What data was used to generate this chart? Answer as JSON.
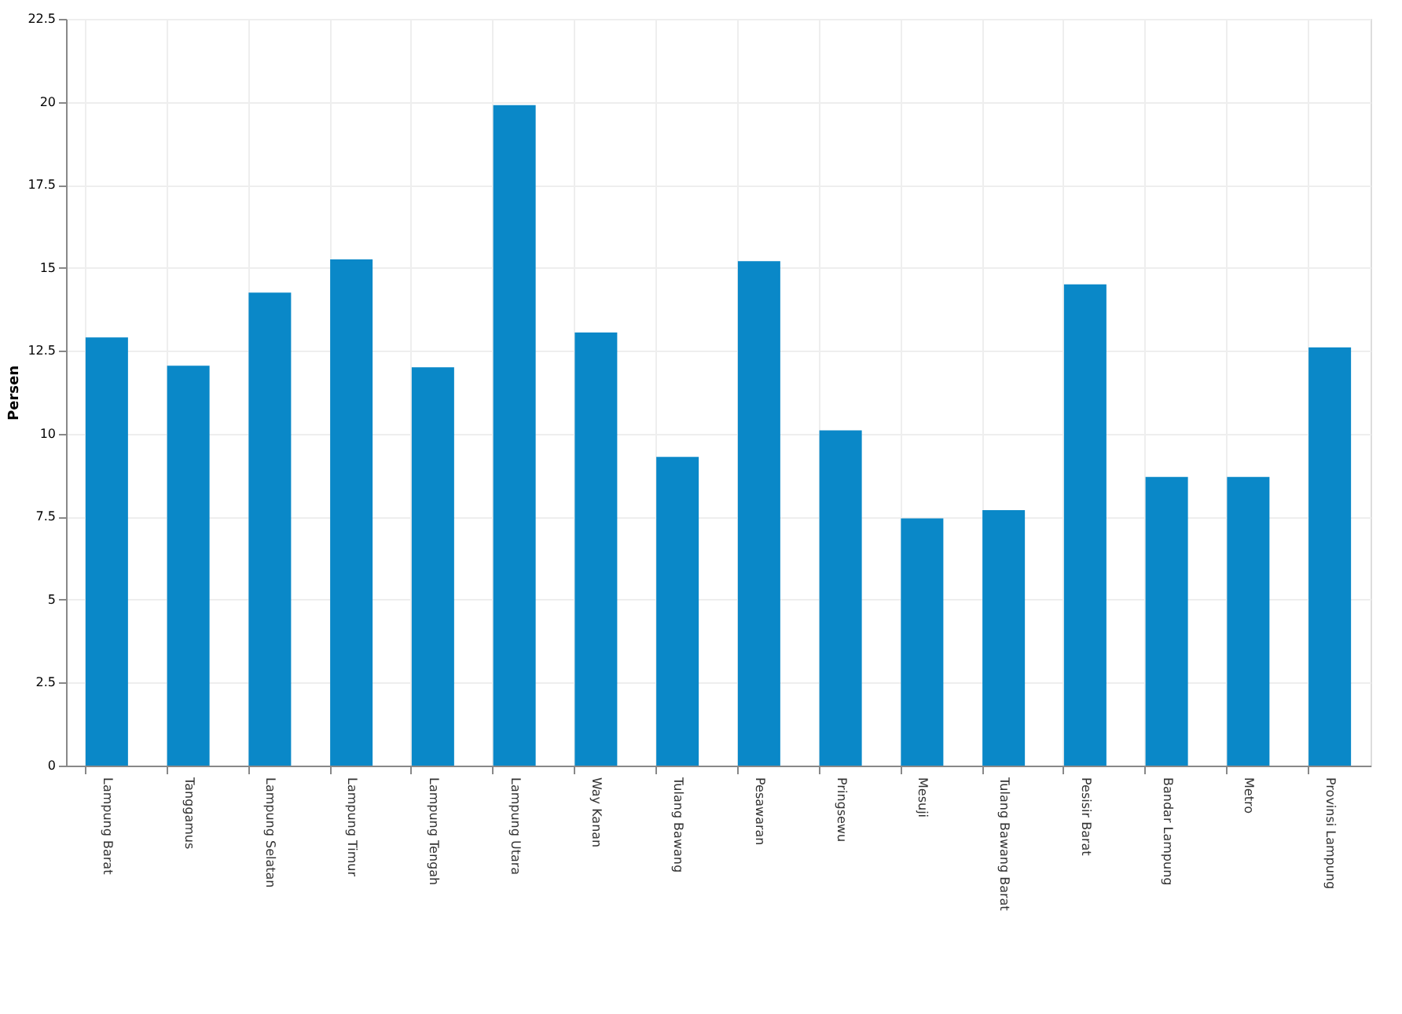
{
  "chart_data": {
    "type": "bar",
    "ylabel": "Persen",
    "categories": [
      "Lampung Barat",
      "Tanggamus",
      "Lampung Selatan",
      "Lampung Timur",
      "Lampung Tengah",
      "Lampung Utara",
      "Way Kanan",
      "Tulang Bawang",
      "Pesawaran",
      "Pringsewu",
      "Mesuji",
      "Tulang Bawang Barat",
      "Pesisir Barat",
      "Bandar Lampung",
      "Metro",
      "Provinsi Lampung"
    ],
    "values": [
      12.9,
      12.05,
      14.25,
      15.25,
      12.0,
      19.9,
      13.05,
      9.3,
      15.2,
      10.1,
      7.45,
      7.7,
      14.5,
      8.7,
      8.7,
      12.6
    ],
    "color": "#0a88c8",
    "ylim": [
      0,
      22.5
    ],
    "yticks": [
      0,
      2.5,
      5,
      7.5,
      10,
      12.5,
      15,
      17.5,
      20,
      22.5
    ],
    "grid": true
  }
}
